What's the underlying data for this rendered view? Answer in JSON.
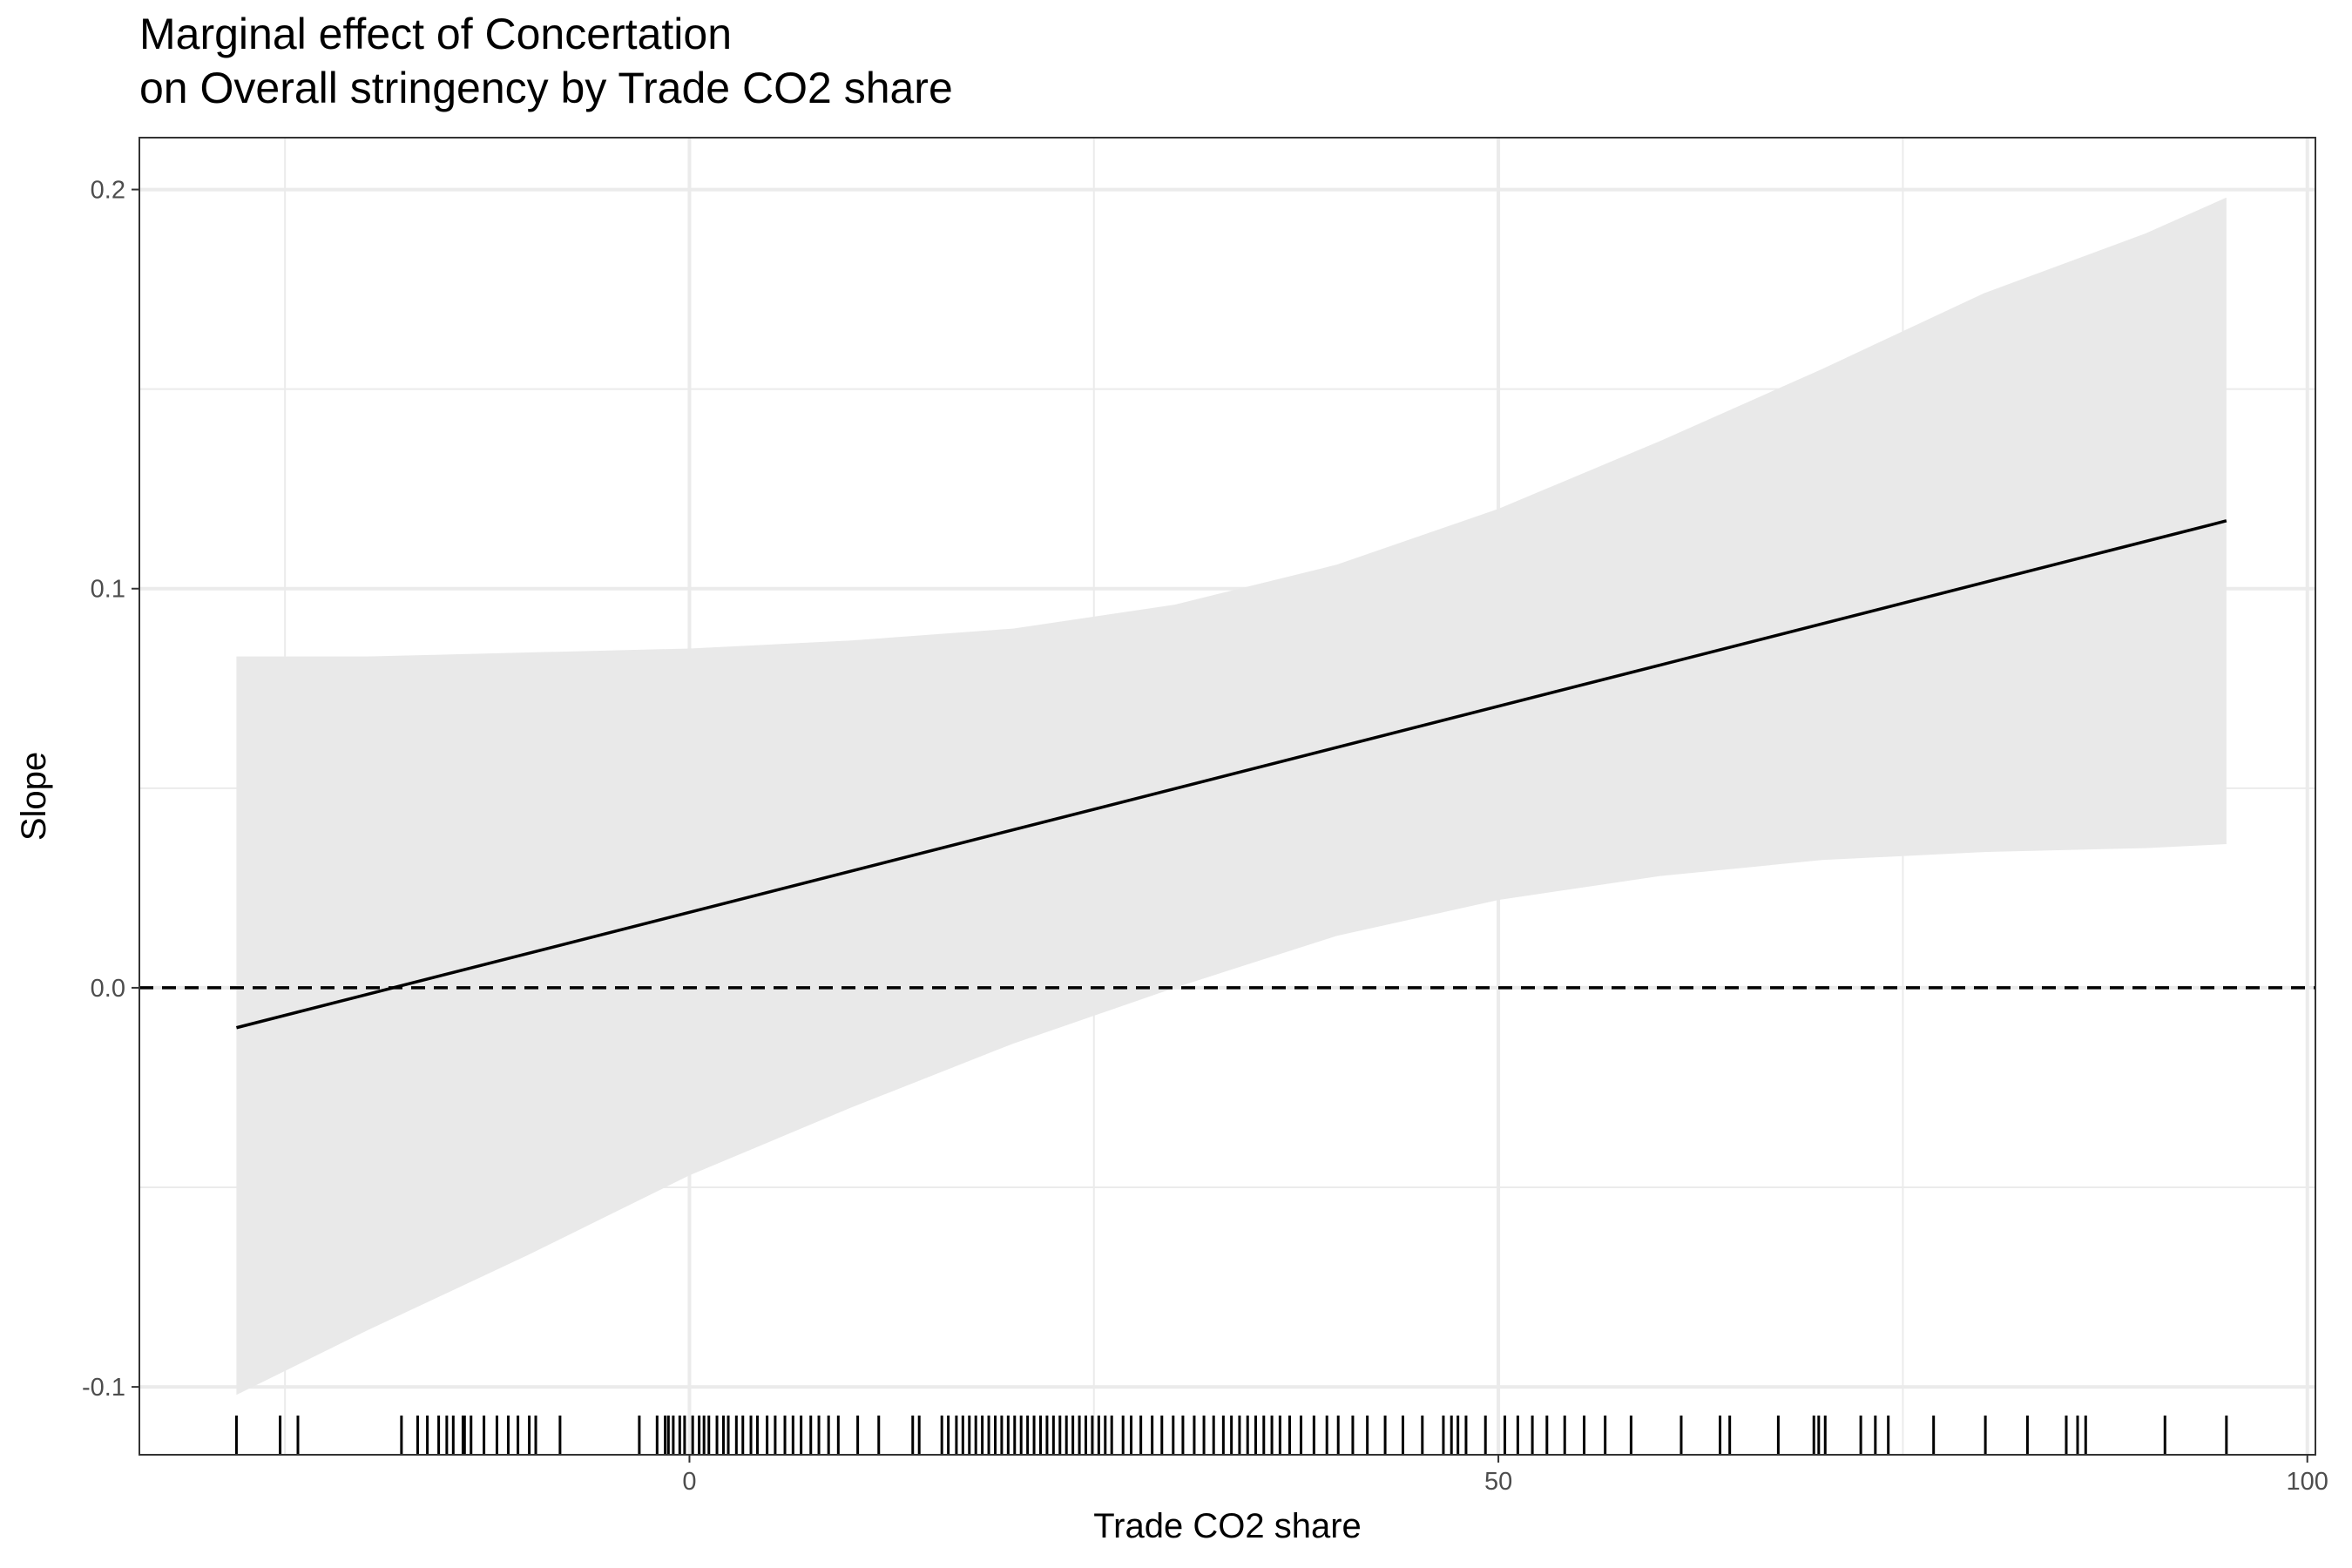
{
  "chart_data": {
    "type": "line",
    "title": "Marginal effect of Concertation",
    "subtitle": "on Overall stringency by Trade CO2 share",
    "xlabel": "Trade CO2 share",
    "ylabel": "Slope",
    "xlim": [
      -34,
      100.5
    ],
    "ylim": [
      -0.117,
      0.213
    ],
    "x_ticks": [
      0,
      50,
      100
    ],
    "x_tick_labels": [
      "0",
      "50",
      "100"
    ],
    "y_ticks": [
      -0.1,
      0.0,
      0.1,
      0.2
    ],
    "y_tick_labels": [
      "-0.1",
      "0.0",
      "0.1",
      "0.2"
    ],
    "grid": true,
    "reference_line": {
      "y": 0,
      "style": "dashed"
    },
    "series": [
      {
        "x": [
          -28,
          95
        ],
        "y": [
          -0.01,
          0.117
        ]
      }
    ],
    "confidence_band": {
      "x": [
        -28,
        -20,
        -10,
        0,
        10,
        20,
        30,
        40,
        50,
        60,
        70,
        80,
        90,
        95
      ],
      "lower": [
        -0.102,
        -0.086,
        -0.067,
        -0.047,
        -0.03,
        -0.014,
        0.0,
        0.013,
        0.022,
        0.028,
        0.032,
        0.034,
        0.035,
        0.036
      ],
      "upper": [
        0.083,
        0.083,
        0.084,
        0.085,
        0.087,
        0.09,
        0.096,
        0.106,
        0.12,
        0.137,
        0.155,
        0.174,
        0.189,
        0.198
      ]
    },
    "rug_x": [
      -28,
      -25.3,
      -24.2,
      -17.8,
      -16.8,
      -16.2,
      -15.5,
      -15,
      -14.6,
      -14,
      -13.9,
      -13.5,
      -12.7,
      -11.9,
      -11.2,
      -10.6,
      -9.9,
      -9.5,
      -8,
      -3.1,
      -2,
      -1.5,
      -1.3,
      -1,
      -0.6,
      -0.3,
      0.2,
      0.6,
      0.9,
      1.2,
      1.7,
      2.1,
      2.4,
      2.9,
      3.3,
      3.8,
      4.2,
      4.8,
      5.3,
      5.9,
      6.4,
      6.9,
      7.5,
      8,
      8.6,
      9.2,
      10.4,
      11.7,
      13.8,
      14.2,
      15.6,
      16,
      16.5,
      16.9,
      17.3,
      17.7,
      18.1,
      18.5,
      18.9,
      19.3,
      19.7,
      20.1,
      20.5,
      20.9,
      21.3,
      21.7,
      22.1,
      22.5,
      22.9,
      23.3,
      23.7,
      24.1,
      24.5,
      24.9,
      25.3,
      25.7,
      26.1,
      26.8,
      27.3,
      27.9,
      28.6,
      29.2,
      29.9,
      30.5,
      31.2,
      31.8,
      32.4,
      33,
      33.5,
      34,
      34.5,
      35,
      35.5,
      36,
      36.5,
      37.1,
      37.8,
      38.6,
      39.4,
      40.1,
      41,
      41.9,
      43,
      44.1,
      45.3,
      46.6,
      47.1,
      47.5,
      48,
      49.2,
      50.4,
      51.2,
      52.1,
      53,
      54.1,
      55.3,
      56.6,
      58.2,
      61.3,
      63.7,
      64.3,
      67.3,
      69.5,
      69.8,
      70.2,
      72.4,
      73.3,
      74.1,
      76.9,
      80.1,
      82.7,
      85.1,
      85.8,
      86.3,
      91.2,
      95
    ]
  }
}
